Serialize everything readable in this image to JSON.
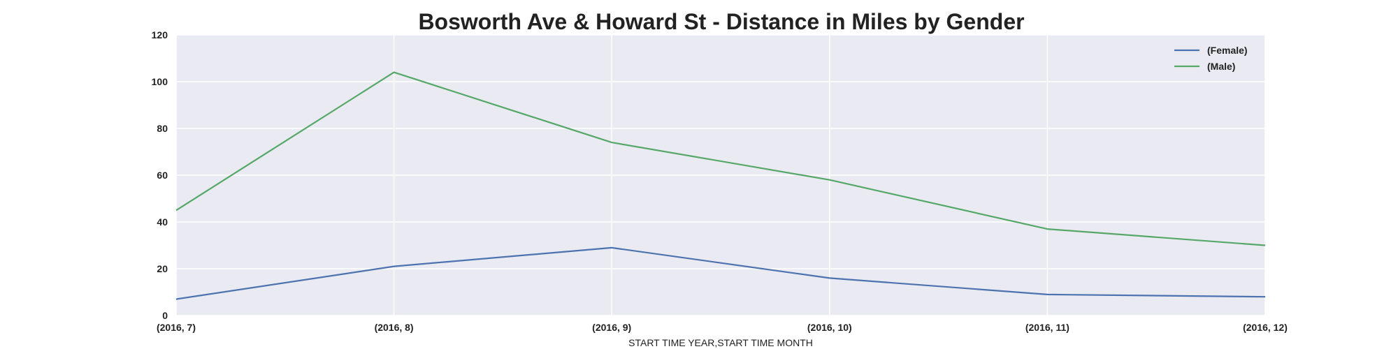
{
  "chart_data": {
    "type": "line",
    "title": "Bosworth Ave & Howard St - Distance in Miles by Gender",
    "xlabel": "START TIME YEAR,START TIME MONTH",
    "ylabel": "",
    "categories": [
      "(2016, 7)",
      "(2016, 8)",
      "(2016, 9)",
      "(2016, 10)",
      "(2016, 11)",
      "(2016, 12)"
    ],
    "ylim": [
      0,
      120
    ],
    "yticks": [
      0,
      20,
      40,
      60,
      80,
      100,
      120
    ],
    "grid": true,
    "legend_position": "top-right",
    "background": "#eaeaf2",
    "series": [
      {
        "name": "(Female)",
        "color": "#4c72b0",
        "values": [
          7,
          21,
          29,
          16,
          9,
          8
        ]
      },
      {
        "name": "(Male)",
        "color": "#55a868",
        "values": [
          45,
          104,
          74,
          58,
          37,
          30
        ]
      }
    ]
  }
}
